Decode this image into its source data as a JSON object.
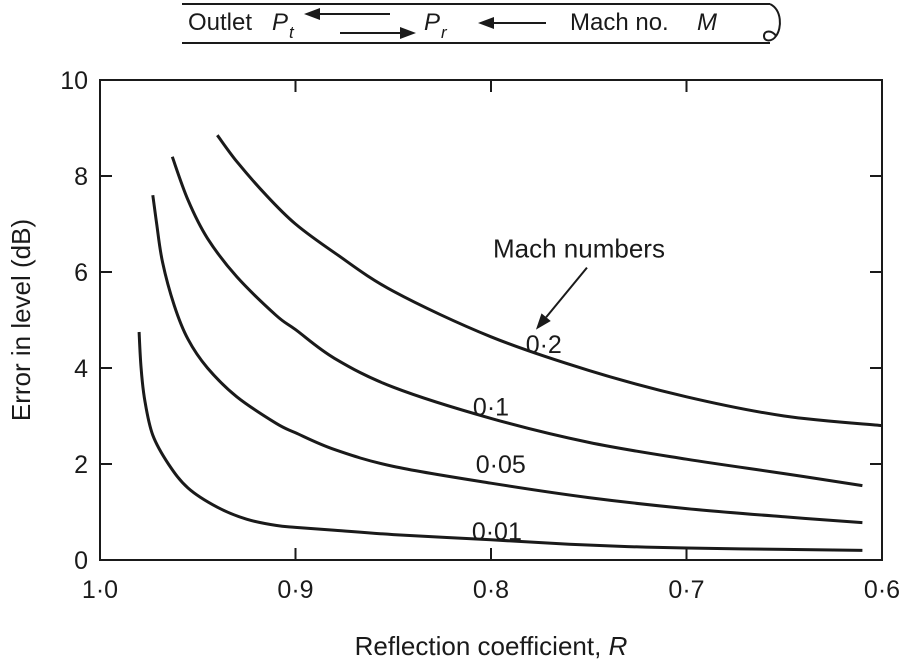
{
  "diagram": {
    "outlet_label": "Outlet",
    "pt_symbol": "P",
    "pt_subscript": "t",
    "pr_symbol": "P",
    "pr_subscript": "r",
    "mach_label": "Mach no.",
    "mach_symbol": "M"
  },
  "chart_data": {
    "type": "line",
    "xlabel_text": "Reflection coefficient,",
    "xlabel_symbol": "R",
    "ylabel": "Error in level (dB)",
    "xlim": [
      1.0,
      0.6
    ],
    "ylim": [
      0,
      10
    ],
    "x_axis_reversed": true,
    "x_ticks": [
      1.0,
      0.9,
      0.8,
      0.7,
      0.6
    ],
    "x_tick_labels": [
      "1·0",
      "0·9",
      "0·8",
      "0·7",
      "0·6"
    ],
    "y_ticks": [
      0,
      2,
      4,
      6,
      8,
      10
    ],
    "y_tick_labels": [
      "0",
      "2",
      "4",
      "6",
      "8",
      "10"
    ],
    "grid": false,
    "annotation": "Mach numbers",
    "series": [
      {
        "name": "0·01",
        "points": [
          [
            0.98,
            4.75
          ],
          [
            0.979,
            4.0
          ],
          [
            0.977,
            3.3
          ],
          [
            0.973,
            2.6
          ],
          [
            0.965,
            2.0
          ],
          [
            0.955,
            1.5
          ],
          [
            0.94,
            1.1
          ],
          [
            0.925,
            0.85
          ],
          [
            0.91,
            0.72
          ],
          [
            0.9,
            0.68
          ],
          [
            0.88,
            0.62
          ],
          [
            0.85,
            0.53
          ],
          [
            0.8,
            0.42
          ],
          [
            0.76,
            0.33
          ],
          [
            0.73,
            0.28
          ],
          [
            0.7,
            0.25
          ],
          [
            0.65,
            0.22
          ],
          [
            0.61,
            0.2
          ]
        ]
      },
      {
        "name": "0·05",
        "points": [
          [
            0.973,
            7.6
          ],
          [
            0.971,
            7.0
          ],
          [
            0.968,
            6.2
          ],
          [
            0.962,
            5.3
          ],
          [
            0.955,
            4.6
          ],
          [
            0.945,
            4.0
          ],
          [
            0.93,
            3.4
          ],
          [
            0.91,
            2.85
          ],
          [
            0.9,
            2.65
          ],
          [
            0.88,
            2.3
          ],
          [
            0.85,
            1.95
          ],
          [
            0.8,
            1.6
          ],
          [
            0.75,
            1.3
          ],
          [
            0.7,
            1.07
          ],
          [
            0.65,
            0.9
          ],
          [
            0.61,
            0.78
          ]
        ]
      },
      {
        "name": "0·1",
        "points": [
          [
            0.963,
            8.4
          ],
          [
            0.955,
            7.5
          ],
          [
            0.945,
            6.7
          ],
          [
            0.93,
            5.9
          ],
          [
            0.91,
            5.1
          ],
          [
            0.9,
            4.8
          ],
          [
            0.88,
            4.2
          ],
          [
            0.85,
            3.6
          ],
          [
            0.8,
            2.95
          ],
          [
            0.75,
            2.45
          ],
          [
            0.7,
            2.1
          ],
          [
            0.65,
            1.8
          ],
          [
            0.61,
            1.55
          ]
        ]
      },
      {
        "name": "0·2",
        "points": [
          [
            0.94,
            8.85
          ],
          [
            0.93,
            8.3
          ],
          [
            0.915,
            7.6
          ],
          [
            0.9,
            7.0
          ],
          [
            0.88,
            6.4
          ],
          [
            0.85,
            5.6
          ],
          [
            0.8,
            4.65
          ],
          [
            0.75,
            3.95
          ],
          [
            0.7,
            3.4
          ],
          [
            0.65,
            3.0
          ],
          [
            0.6,
            2.8
          ]
        ]
      }
    ],
    "series_labels": [
      {
        "text": "0·2",
        "x": 0.773,
        "y": 4.5
      },
      {
        "text": "0·1",
        "x": 0.8,
        "y": 3.2
      },
      {
        "text": "0·05",
        "x": 0.795,
        "y": 2.0
      },
      {
        "text": "0·01",
        "x": 0.797,
        "y": 0.6
      }
    ],
    "annotation_anchor": {
      "x": 0.755,
      "y": 6.3
    },
    "annotation_arrow_tip": {
      "x": 0.777,
      "y": 4.8
    }
  }
}
